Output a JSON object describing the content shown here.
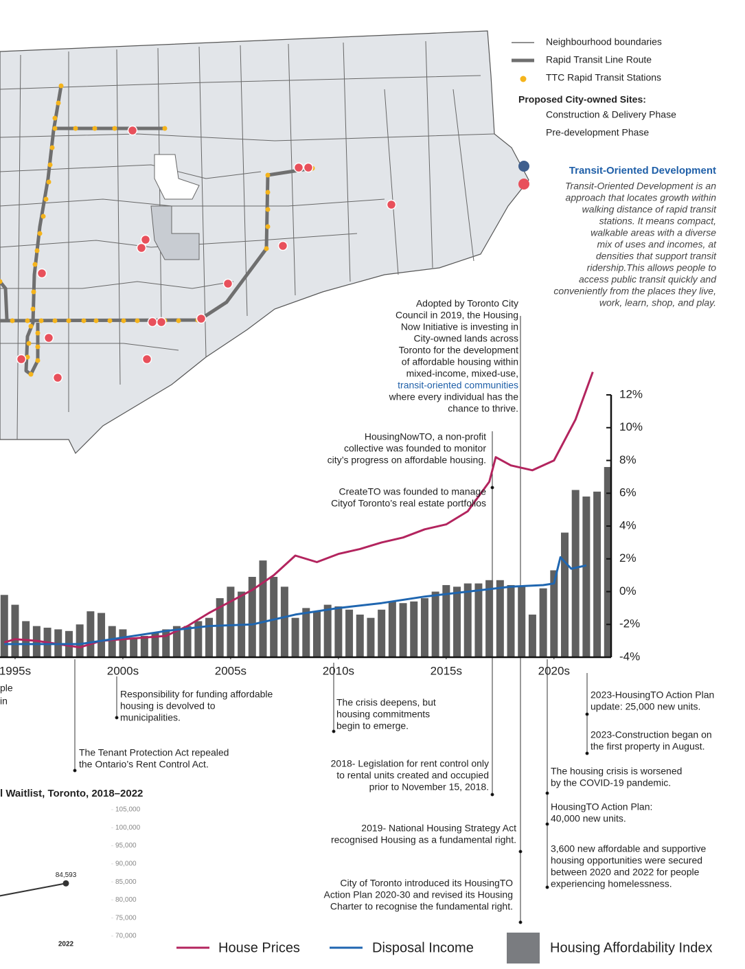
{
  "map_legend": {
    "items": [
      "Neighbourhood boundaries",
      "Rapid Transit Line Route",
      "TTC Rapid Transit Stations"
    ],
    "sites_title": "Proposed City-owned Sites:",
    "sites": [
      "Construction & Delivery Phase",
      "Pre-development Phase"
    ]
  },
  "tod": {
    "title": "Transit-Oriented Development",
    "lines": [
      "Transit-Oriented Development is an",
      "approach that locates growth within",
      "walking distance of rapid transit",
      "stations. It means compact,",
      "walkable areas with a diverse",
      "mix of uses and incomes, at",
      "densities that support transit",
      "ridership.This allows people to",
      "access public transit quickly and",
      "conveniently from the places they live,",
      "work, learn, shop, and play."
    ]
  },
  "annotations": [
    [
      "Adopted by Toronto City",
      "Council in 2019, the Housing",
      "Now Initiative is investing in",
      "City-owned lands across",
      "Toronto for the development",
      "of affordable housing within",
      "mixed-income, mixed-use,",
      "transit-oriented communities",
      "where every individual has the",
      "chance to thrive."
    ],
    [
      "HousingNowTO, a non-profit",
      "collective was founded to monitor",
      "city’s progress on affordable housing."
    ],
    [
      "CreateTO was founded to manage",
      "Cityof Toronto’s real estate portfolios"
    ],
    [
      "Responsibility for funding affordable",
      "housing is devolved to",
      "municipalities."
    ],
    [
      "The Tenant Protection Act repealed",
      "the Ontario’s Rent Control Act."
    ],
    [
      "The crisis deepens, but",
      "housing commitments",
      "begin to emerge."
    ],
    [
      "2018- Legislation for rent control only",
      "to rental units created and occupied",
      "prior to November 15, 2018."
    ],
    [
      "2019- National Housing Strategy Act",
      "recognised Housing as a fundamental right."
    ],
    [
      "City of Toronto introduced its HousingTO",
      "Action Plan 2020-30 and revised its Housing",
      "Charter to recognise the fundamental right."
    ],
    [
      "2023-HousingTO Action Plan",
      "update: 25,000 new units."
    ],
    [
      "2023-Construction began on",
      "the first property in August."
    ],
    [
      "The housing crisis is worsened",
      "by the COVID-19 pandemic."
    ],
    [
      "HousingTO Action Plan:",
      "40,000 new units."
    ],
    [
      "3,600 new affordable and supportive",
      "housing opportunities were secured",
      "between 2020 and 2022 for people",
      "experiencing homelessness."
    ],
    [
      "ple",
      "in"
    ]
  ],
  "chart_data": [
    {
      "type": "combo",
      "legend": "bottom",
      "xlim": [
        1994.3,
        2022.65
      ],
      "xticks": [
        {
          "value": 1995,
          "label": "1995s"
        },
        {
          "value": 2000,
          "label": "2000s"
        },
        {
          "value": 2005,
          "label": "2005s"
        },
        {
          "value": 2010,
          "label": "2010s"
        },
        {
          "value": 2015,
          "label": "2015s"
        },
        {
          "value": 2020,
          "label": "2020s"
        }
      ],
      "ylim": [
        -4,
        12
      ],
      "yticks": [
        {
          "value": -4,
          "label": "-4%"
        },
        {
          "value": -2,
          "label": "-2%"
        },
        {
          "value": 0,
          "label": "0%"
        },
        {
          "value": 2,
          "label": "2%"
        },
        {
          "value": 4,
          "label": "4%"
        },
        {
          "value": 6,
          "label": "6%"
        },
        {
          "value": 8,
          "label": "8%"
        },
        {
          "value": 10,
          "label": "10%"
        },
        {
          "value": 12,
          "label": "12%"
        }
      ],
      "series": [
        {
          "name": "House Prices",
          "type": "line",
          "color": "#b3245e",
          "x": [
            1994.5,
            1995,
            1996,
            1997,
            1998,
            1999,
            2000,
            2001,
            2002,
            2003,
            2004,
            2005,
            2006,
            2007,
            2008,
            2009,
            2010,
            2011,
            2012,
            2013,
            2014,
            2015,
            2016,
            2017,
            2017.3,
            2018,
            2019,
            2020,
            2021,
            2021.8
          ],
          "values": [
            -3.1,
            -2.9,
            -3.0,
            -3.2,
            -3.4,
            -3.0,
            -2.9,
            -2.8,
            -2.7,
            -2.1,
            -1.3,
            -0.6,
            0.1,
            1.0,
            2.2,
            1.8,
            2.3,
            2.6,
            3.0,
            3.3,
            3.8,
            4.1,
            4.9,
            6.7,
            8.2,
            7.7,
            7.4,
            8.0,
            10.5,
            13.4
          ]
        },
        {
          "name": "Disposal Income",
          "type": "line",
          "color": "#1f66b0",
          "x": [
            1994.5,
            1996,
            1998,
            2000,
            2002,
            2004,
            2006,
            2008,
            2010,
            2012,
            2014,
            2016,
            2018,
            2019.5,
            2020,
            2020.3,
            2020.8,
            2021.5
          ],
          "values": [
            -3.2,
            -3.2,
            -3.2,
            -2.8,
            -2.4,
            -2.1,
            -2.0,
            -1.4,
            -1.0,
            -0.7,
            -0.3,
            0.0,
            0.3,
            0.4,
            0.5,
            2.1,
            1.4,
            1.6
          ]
        },
        {
          "name": "Housing Affordability Index",
          "type": "bar",
          "color": "#5f5f5f",
          "x": [
            1994.5,
            1995,
            1995.5,
            1996,
            1996.5,
            1997,
            1997.5,
            1998,
            1998.5,
            1999,
            1999.5,
            2000,
            2000.5,
            2001,
            2001.5,
            2002,
            2002.5,
            2003,
            2003.5,
            2004,
            2004.5,
            2005,
            2005.5,
            2006,
            2006.5,
            2007,
            2007.5,
            2008,
            2008.5,
            2009,
            2009.5,
            2010,
            2010.5,
            2011,
            2011.5,
            2012,
            2012.5,
            2013,
            2013.5,
            2014,
            2014.5,
            2015,
            2015.5,
            2016,
            2016.5,
            2017,
            2017.5,
            2018,
            2018.5,
            2019,
            2019.5,
            2020,
            2020.5,
            2021,
            2021.5,
            2022,
            2022.5
          ],
          "values": [
            -0.2,
            -0.8,
            -1.8,
            -2.1,
            -2.2,
            -2.3,
            -2.4,
            -2.0,
            -1.2,
            -1.3,
            -2.1,
            -2.3,
            -2.8,
            -2.7,
            -2.5,
            -2.3,
            -2.1,
            -2.1,
            -1.8,
            -1.6,
            -0.4,
            0.3,
            0.0,
            0.9,
            1.9,
            0.9,
            0.3,
            -1.6,
            -1.0,
            -1.2,
            -0.8,
            -0.9,
            -1.1,
            -1.4,
            -1.6,
            -1.1,
            -0.6,
            -0.7,
            -0.6,
            -0.4,
            0.0,
            0.4,
            0.3,
            0.5,
            0.5,
            0.7,
            0.7,
            0.4,
            0.3,
            -1.4,
            0.2,
            1.3,
            3.6,
            6.2,
            5.8,
            6.1,
            7.6
          ]
        }
      ]
    },
    {
      "type": "line",
      "title": "l Waitlist, Toronto, 2018–2022",
      "categories": [
        null,
        "2022"
      ],
      "values": [
        79700,
        84593
      ],
      "value_labels": [
        null,
        "84,593"
      ],
      "color": "#333333",
      "ylim": [
        70000,
        105000
      ],
      "yticks": [
        {
          "value": 70000,
          "label": "70,000"
        },
        {
          "value": 75000,
          "label": "75,000"
        },
        {
          "value": 80000,
          "label": "80,000"
        },
        {
          "value": 85000,
          "label": "85,000"
        },
        {
          "value": 90000,
          "label": "90,000"
        },
        {
          "value": 95000,
          "label": "95,000"
        },
        {
          "value": 100000,
          "label": "100,000"
        },
        {
          "value": 105000,
          "label": "105,000"
        }
      ]
    }
  ]
}
